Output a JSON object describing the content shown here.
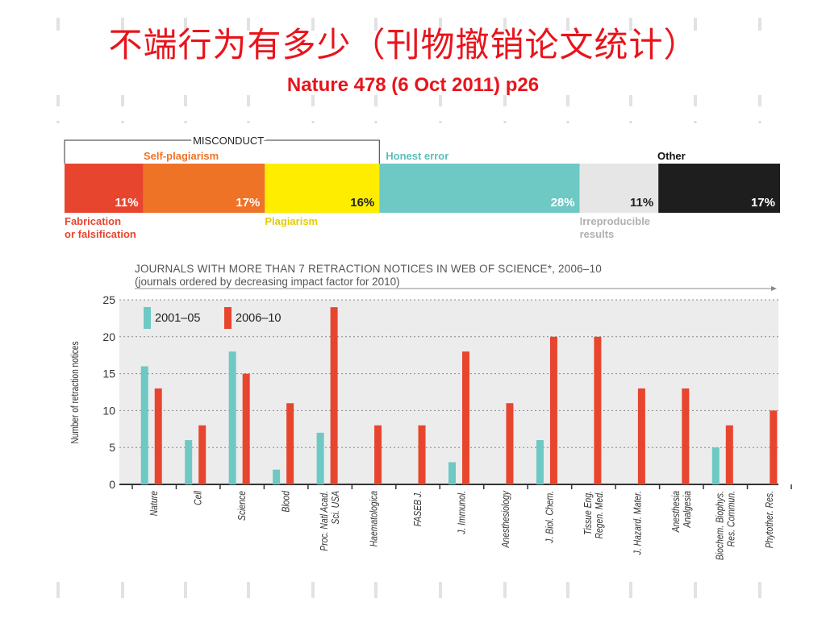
{
  "page": {
    "title": "不端行为有多少（刊物撤销论文统计）",
    "subtitle": "Nature 478 (6 Oct 2011) p26"
  },
  "chart_data": [
    {
      "type": "bar",
      "stacked": true,
      "orientation": "horizontal",
      "group_label": "MISCONDUCT",
      "segments": [
        {
          "name": "Fabrication or falsification",
          "value": 11,
          "label": "11%",
          "color": "#e8452f",
          "text_color": "#ffffff",
          "name_color": "#e8452f"
        },
        {
          "name": "Self-plagiarism",
          "value": 17,
          "label": "17%",
          "color": "#ee7327",
          "text_color": "#ffffff",
          "name_color": "#ee7327"
        },
        {
          "name": "Plagiarism",
          "value": 16,
          "label": "16%",
          "color": "#ffed00",
          "text_color": "#222222",
          "name_color": "#e3cc00"
        },
        {
          "name": "Honest error",
          "value": 28,
          "label": "28%",
          "color": "#6ec8c3",
          "text_color": "#ffffff",
          "name_color": "#5bbfba"
        },
        {
          "name": "Irreproducible results",
          "value": 11,
          "label": "11%",
          "color": "#e6e6e6",
          "text_color": "#222222",
          "name_color": "#b0b0b0"
        },
        {
          "name": "Other",
          "value": 17,
          "label": "17%",
          "color": "#1e1e1e",
          "text_color": "#ffffff",
          "name_color": "#111111"
        }
      ]
    },
    {
      "type": "bar",
      "title": "JOURNALS WITH MORE THAN 7 RETRACTION NOTICES IN WEB OF SCIENCE*, 2006–10",
      "subtitle": "(journals ordered by decreasing impact factor for 2010)",
      "ylabel": "Number of retraction notices",
      "xlabel": "",
      "ylim": [
        0,
        25
      ],
      "yticks": [
        0,
        5,
        10,
        15,
        20,
        25
      ],
      "grid": true,
      "legend": "top-left",
      "categories": [
        [
          "Nature"
        ],
        [
          "Cell"
        ],
        [
          "Science"
        ],
        [
          "Blood"
        ],
        [
          "Proc. Natl Acad.",
          "Sci. USA"
        ],
        [
          "Haematologica"
        ],
        [
          "FASEB J."
        ],
        [
          "J. Immunol."
        ],
        [
          "Anesthesiology"
        ],
        [
          "J. Biol. Chem."
        ],
        [
          "Tissue Eng.",
          "Regen. Med."
        ],
        [
          "J. Hazard. Mater."
        ],
        [
          "Anesthesia",
          "Analgesia"
        ],
        [
          "Biochem. Biophys.",
          "Res. Commun."
        ],
        [
          "Phytother. Res."
        ]
      ],
      "series": [
        {
          "name": "2001–05",
          "color": "#6ec8c3",
          "values": [
            16,
            6,
            18,
            2,
            7,
            0,
            0,
            3,
            0,
            6,
            0,
            0,
            0,
            5,
            0
          ]
        },
        {
          "name": "2006–10",
          "color": "#e8452f",
          "values": [
            13,
            8,
            15,
            11,
            24,
            8,
            8,
            18,
            11,
            20,
            20,
            13,
            13,
            8,
            10
          ]
        }
      ]
    }
  ]
}
